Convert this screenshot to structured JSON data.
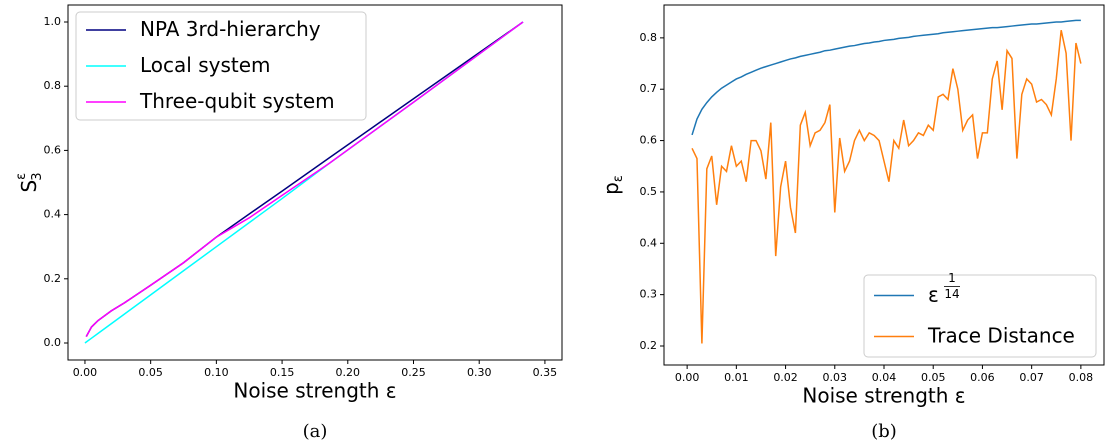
{
  "chart_data": [
    {
      "type": "line",
      "caption": "(a)",
      "xlabel": "Noise strength ε",
      "ylabel": "S",
      "ylabel_sub": "3",
      "ylabel_sup": "ε",
      "legend": "upper left",
      "x": [
        0,
        0.001,
        0.005,
        0.01,
        0.02,
        0.03,
        0.05,
        0.075,
        0.1,
        0.125,
        0.15,
        0.186,
        0.25,
        0.3333
      ],
      "series": [
        {
          "name": "NPA 3rd-hierarchy",
          "color": "#000080",
          "values": [
            null,
            0.02,
            0.05,
            0.07,
            0.1,
            0.125,
            0.18,
            0.25,
            0.33,
            0.402,
            0.473,
            0.577,
            0.761,
            1.0
          ]
        },
        {
          "name": "Local system",
          "color": "#00ffff",
          "values": [
            0,
            0.003,
            0.015,
            0.03,
            0.06,
            0.09,
            0.15,
            0.225,
            0.3,
            0.375,
            0.45,
            0.56,
            0.75,
            1.0
          ]
        },
        {
          "name": "Three-qubit system",
          "color": "#ff00ff",
          "values": [
            null,
            0.02,
            0.05,
            0.07,
            0.1,
            0.125,
            0.18,
            0.25,
            0.33,
            0.39,
            0.46,
            0.56,
            0.75,
            1.0
          ]
        }
      ],
      "xlim": [
        -0.0129,
        0.363
      ],
      "ylim": [
        -0.053,
        1.053
      ],
      "xticks": [
        {
          "value": 0,
          "label": "0.00"
        },
        {
          "value": 0.05,
          "label": "0.05"
        },
        {
          "value": 0.1,
          "label": "0.10"
        },
        {
          "value": 0.15,
          "label": "0.15"
        },
        {
          "value": 0.2,
          "label": "0.20"
        },
        {
          "value": 0.25,
          "label": "0.25"
        },
        {
          "value": 0.3,
          "label": "0.30"
        },
        {
          "value": 0.35,
          "label": "0.35"
        }
      ],
      "yticks": [
        {
          "value": 0,
          "label": "0.0"
        },
        0.2,
        0.4,
        0.6,
        0.8,
        {
          "value": 1,
          "label": "1.0"
        }
      ]
    },
    {
      "type": "line",
      "caption": "(b)",
      "xlabel": "Noise strength ε",
      "ylabel": "p",
      "ylabel_sub": "ε",
      "legend": "lower right",
      "x": [
        0.001,
        0.002,
        0.003,
        0.004,
        0.005,
        0.006,
        0.007,
        0.008,
        0.009,
        0.01,
        0.011,
        0.012,
        0.013,
        0.014,
        0.015,
        0.016,
        0.017,
        0.018,
        0.019,
        0.02,
        0.021,
        0.022,
        0.023,
        0.024,
        0.025,
        0.026,
        0.027,
        0.028,
        0.029,
        0.03,
        0.031,
        0.032,
        0.033,
        0.034,
        0.035,
        0.036,
        0.037,
        0.038,
        0.039,
        0.04,
        0.041,
        0.042,
        0.043,
        0.044,
        0.045,
        0.046,
        0.047,
        0.048,
        0.049,
        0.05,
        0.051,
        0.052,
        0.053,
        0.054,
        0.055,
        0.056,
        0.057,
        0.058,
        0.059,
        0.06,
        0.061,
        0.062,
        0.063,
        0.064,
        0.065,
        0.066,
        0.067,
        0.068,
        0.069,
        0.07,
        0.071,
        0.072,
        0.073,
        0.074,
        0.075,
        0.076,
        0.077,
        0.078,
        0.079,
        0.08
      ],
      "series": [
        {
          "name": "ε",
          "name_sup": [
            "1",
            "14"
          ],
          "color": "#1f77b4",
          "values": [
            0.611,
            0.642,
            0.661,
            0.674,
            0.685,
            0.694,
            0.702,
            0.708,
            0.714,
            0.72,
            0.724,
            0.729,
            0.733,
            0.737,
            0.741,
            0.744,
            0.747,
            0.75,
            0.753,
            0.756,
            0.759,
            0.761,
            0.764,
            0.766,
            0.768,
            0.77,
            0.772,
            0.775,
            0.776,
            0.778,
            0.78,
            0.782,
            0.784,
            0.785,
            0.787,
            0.789,
            0.79,
            0.792,
            0.793,
            0.795,
            0.796,
            0.797,
            0.799,
            0.8,
            0.801,
            0.803,
            0.804,
            0.805,
            0.806,
            0.807,
            0.808,
            0.81,
            0.811,
            0.812,
            0.813,
            0.814,
            0.815,
            0.816,
            0.817,
            0.818,
            0.819,
            0.82,
            0.82,
            0.821,
            0.822,
            0.823,
            0.824,
            0.825,
            0.826,
            0.827,
            0.827,
            0.828,
            0.829,
            0.83,
            0.831,
            0.831,
            0.832,
            0.833,
            0.834,
            0.834
          ]
        },
        {
          "name": "Trace Distance",
          "color": "#ff7f0e",
          "values": [
            0.585,
            0.565,
            0.205,
            0.545,
            0.57,
            0.475,
            0.55,
            0.54,
            0.59,
            0.55,
            0.56,
            0.52,
            0.6,
            0.6,
            0.58,
            0.525,
            0.635,
            0.375,
            0.51,
            0.56,
            0.47,
            0.42,
            0.63,
            0.655,
            0.59,
            0.615,
            0.62,
            0.635,
            0.67,
            0.46,
            0.605,
            0.54,
            0.56,
            0.6,
            0.62,
            0.6,
            0.615,
            0.61,
            0.6,
            0.56,
            0.52,
            0.6,
            0.585,
            0.64,
            0.59,
            0.6,
            0.615,
            0.61,
            0.63,
            0.62,
            0.685,
            0.69,
            0.68,
            0.74,
            0.7,
            0.62,
            0.64,
            0.65,
            0.565,
            0.615,
            0.615,
            0.72,
            0.755,
            0.66,
            0.775,
            0.76,
            0.565,
            0.69,
            0.72,
            0.71,
            0.675,
            0.68,
            0.67,
            0.65,
            0.72,
            0.815,
            0.77,
            0.6,
            0.79,
            0.75
          ]
        }
      ],
      "xlim": [
        -0.0047,
        0.0847
      ],
      "ylim": [
        0.163,
        0.864
      ],
      "xticks": [
        {
          "value": 0,
          "label": "0.00"
        },
        0.01,
        0.02,
        0.03,
        0.04,
        0.05,
        0.06,
        0.07,
        0.08
      ],
      "yticks": [
        0.2,
        0.3,
        0.4,
        0.5,
        0.6,
        0.7,
        0.8
      ]
    }
  ]
}
